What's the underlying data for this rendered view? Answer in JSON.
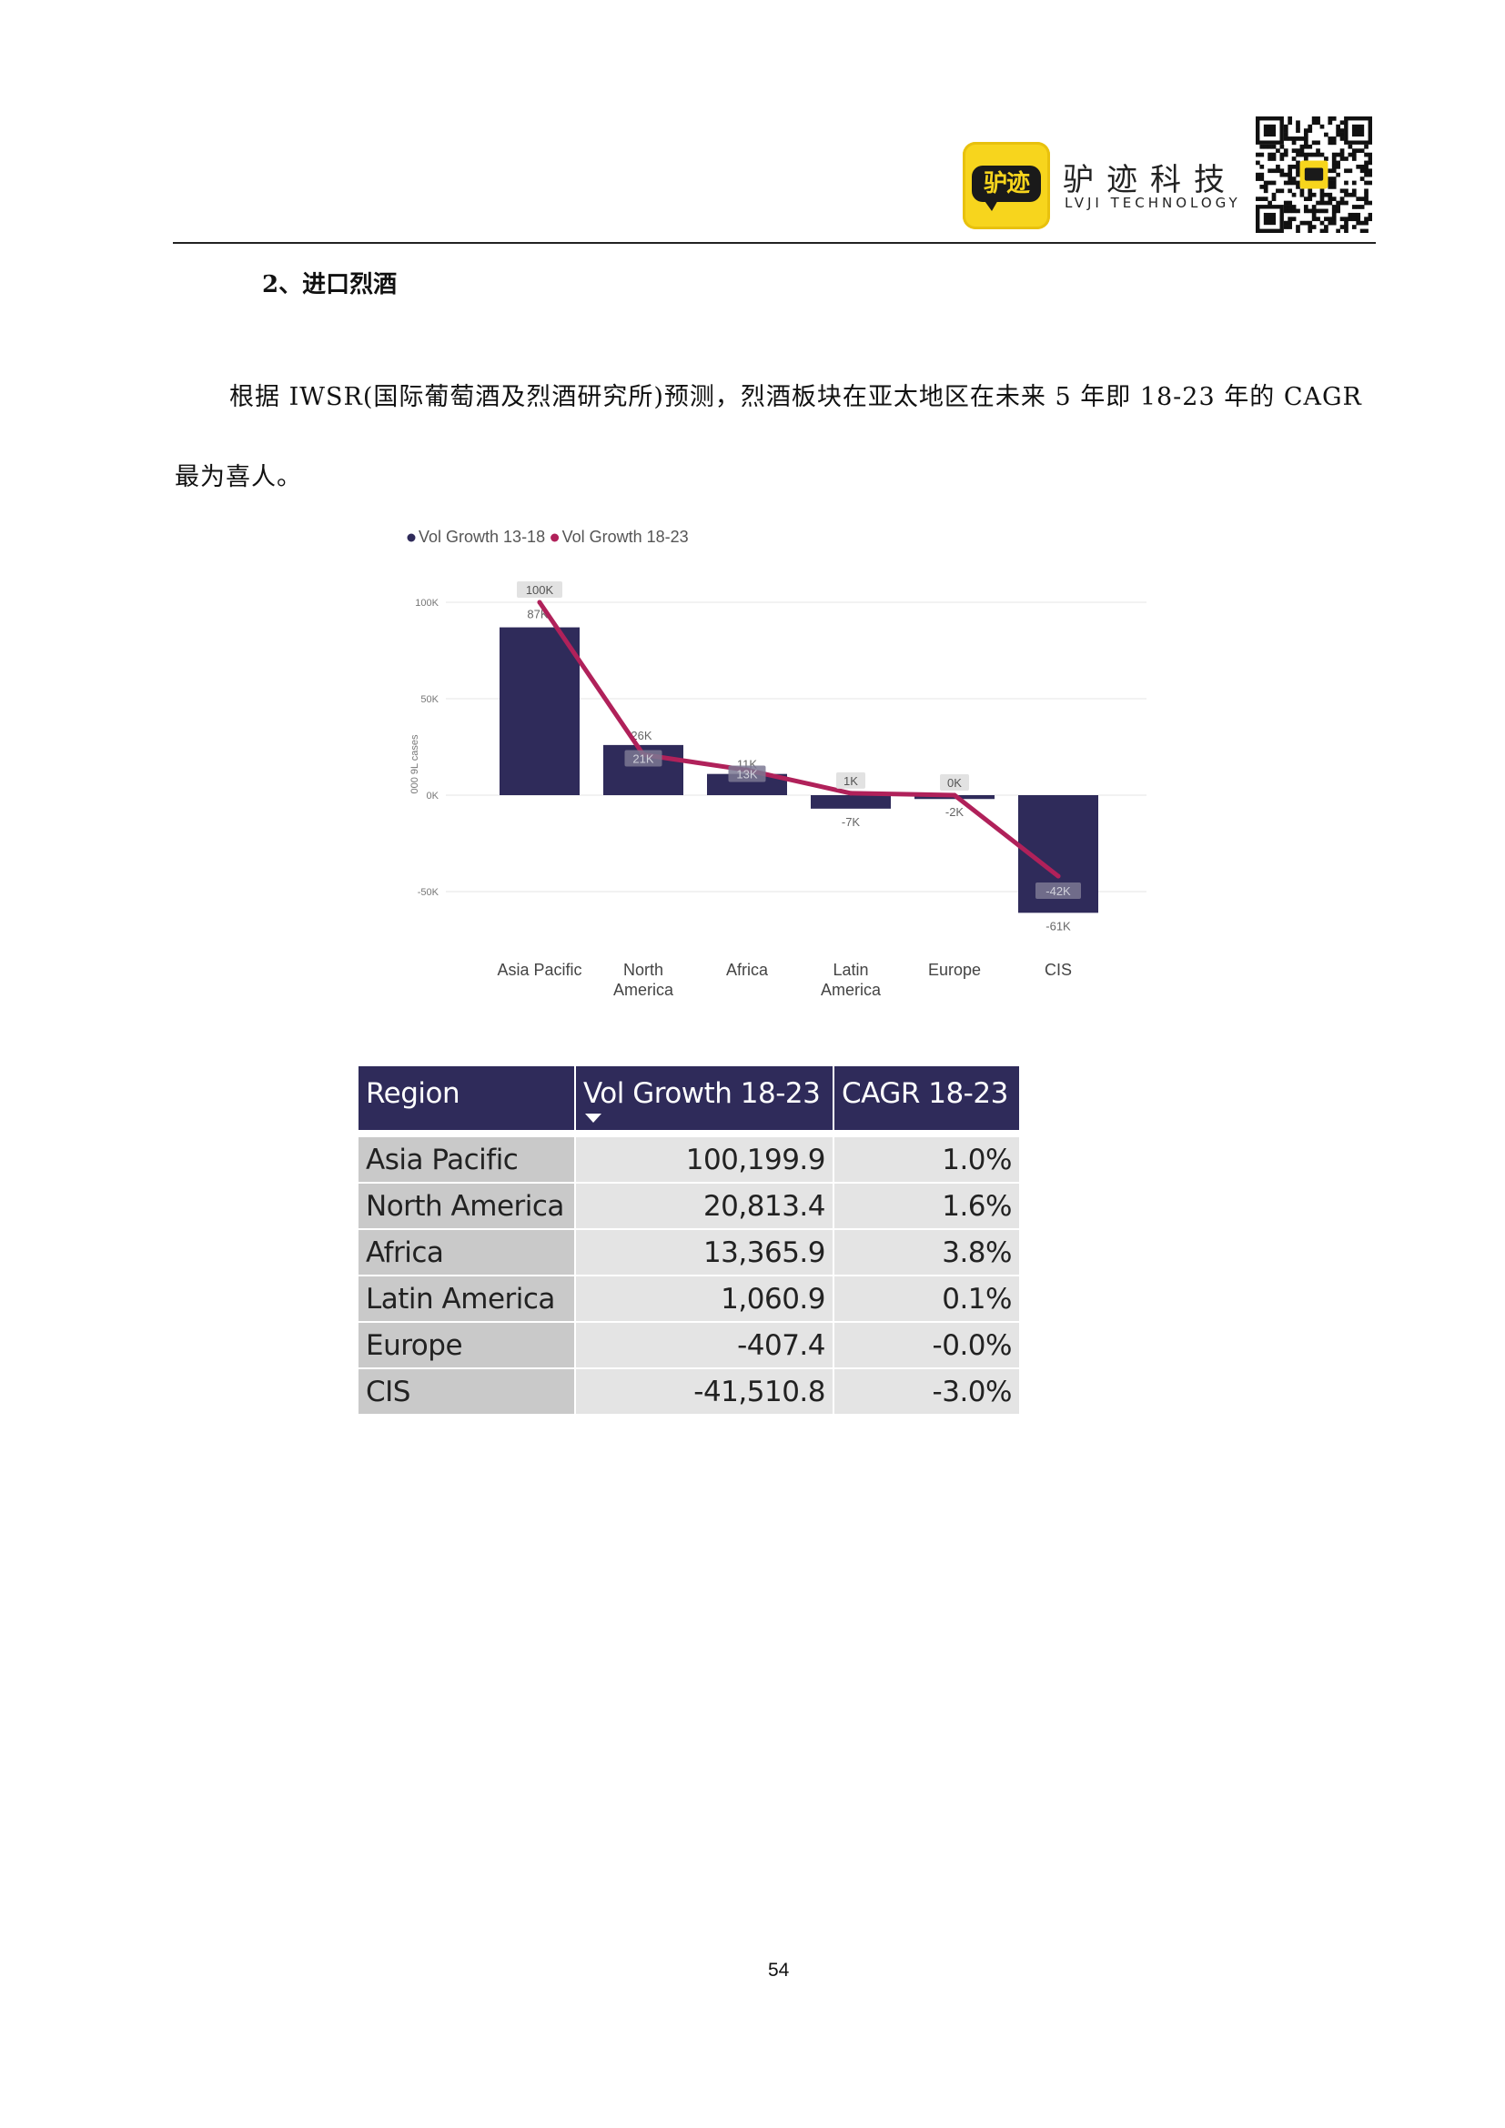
{
  "header": {
    "logo_text": "驴迹",
    "brand_name_cn": "驴迹科技",
    "brand_name_en": "LVJI TECHNOLOGY",
    "qr_icon": "qr-code-icon"
  },
  "section": {
    "heading": "2、进口烈酒",
    "paragraph_line1": "根据 IWSR(国际葡萄酒及烈酒研究所)预测，烈酒板块在亚太地区在未来 5 年即 18-23 年的 CAGR",
    "paragraph_line2": "最为喜人。"
  },
  "colors": {
    "bar": "#2f2b5a",
    "line": "#b0215a",
    "table_header": "#2f2b5a"
  },
  "chart_data": {
    "type": "bar",
    "categories": [
      "Asia Pacific",
      "North America",
      "Africa",
      "Latin America",
      "Europe",
      "CIS"
    ],
    "category_lines": [
      [
        "Asia Pacific"
      ],
      [
        "North",
        "America"
      ],
      [
        "Africa"
      ],
      [
        "Latin",
        "America"
      ],
      [
        "Europe"
      ],
      [
        "CIS"
      ]
    ],
    "series": [
      {
        "name": "Vol Growth 13-18",
        "render": "bar",
        "values": [
          87,
          26,
          11,
          -7,
          -2,
          -61
        ],
        "labels": [
          "87K",
          "26K",
          "11K",
          "-7K",
          "-2K",
          "-61K"
        ]
      },
      {
        "name": "Vol Growth 18-23",
        "render": "line",
        "values": [
          100,
          21,
          13,
          1,
          0,
          -42
        ],
        "labels": [
          "100K",
          "21K",
          "13K",
          "1K",
          "0K",
          "-42K"
        ]
      }
    ],
    "ylabel": "000 9L cases",
    "yticks": [
      100,
      50,
      0,
      -50
    ],
    "ytick_labels": [
      "100K",
      "50K",
      "0K",
      "-50K"
    ],
    "ylim": [
      -65,
      105
    ],
    "legend": "top-left",
    "grid": true
  },
  "table": {
    "headers": [
      "Region",
      "Vol Growth 18-23",
      "CAGR 18-23"
    ],
    "rows": [
      [
        "Asia Pacific",
        "100,199.9",
        "1.0%"
      ],
      [
        "North America",
        "20,813.4",
        "1.6%"
      ],
      [
        "Africa",
        "13,365.9",
        "3.8%"
      ],
      [
        "Latin America",
        "1,060.9",
        "0.1%"
      ],
      [
        "Europe",
        "-407.4",
        "-0.0%"
      ],
      [
        "CIS",
        "-41,510.8",
        "-3.0%"
      ]
    ]
  },
  "footer": {
    "page_number": "54"
  }
}
